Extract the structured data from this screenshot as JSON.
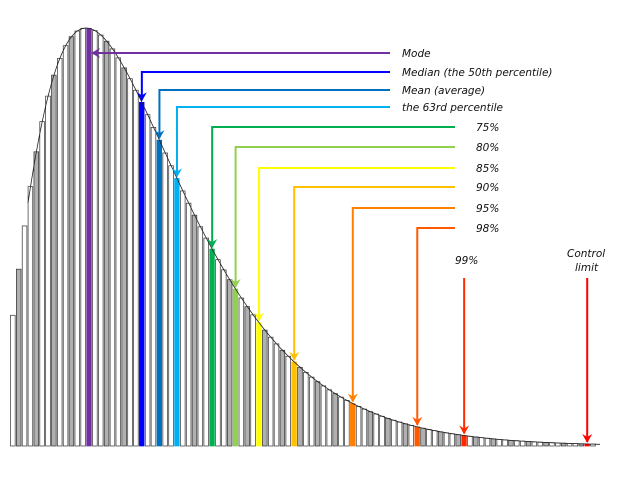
{
  "chart_data": {
    "type": "bar",
    "title": "",
    "description_curve": "right-skewed distribution histogram",
    "bar_count": 100,
    "distribution": {
      "shape": 1.5,
      "peak_bar": 13.0,
      "start_offset": 2.8
    },
    "ylim": [
      0,
      1
    ],
    "markers": [
      {
        "label": "Mode",
        "bar": 13,
        "color": "#7030a0",
        "style": "left"
      },
      {
        "label": "Median (the 50th percentile)",
        "bar": 22,
        "color": "#0000ff",
        "style": "down"
      },
      {
        "label": "Mean (average)",
        "bar": 25,
        "color": "#0070c0",
        "style": "down"
      },
      {
        "label": "the 63rd percentile",
        "bar": 28,
        "color": "#00b0f0",
        "style": "down"
      },
      {
        "label": "75%",
        "bar": 34,
        "color": "#00b050",
        "style": "down"
      },
      {
        "label": "80%",
        "bar": 38,
        "color": "#92d050",
        "style": "down"
      },
      {
        "label": "85%",
        "bar": 42,
        "color": "#ffff00",
        "style": "down"
      },
      {
        "label": "90%",
        "bar": 48,
        "color": "#ffc000",
        "style": "down"
      },
      {
        "label": "95%",
        "bar": 58,
        "color": "#ff8000",
        "style": "down"
      },
      {
        "label": "98%",
        "bar": 69,
        "color": "#ff5a00",
        "style": "down"
      },
      {
        "label": "99%",
        "bar": 77,
        "color": "#ff2a00",
        "style": "vertical"
      },
      {
        "label": "Control limit",
        "label_lines": [
          "Control",
          "limit"
        ],
        "bar": 98,
        "color": "#ff0000",
        "style": "vertical"
      }
    ]
  }
}
